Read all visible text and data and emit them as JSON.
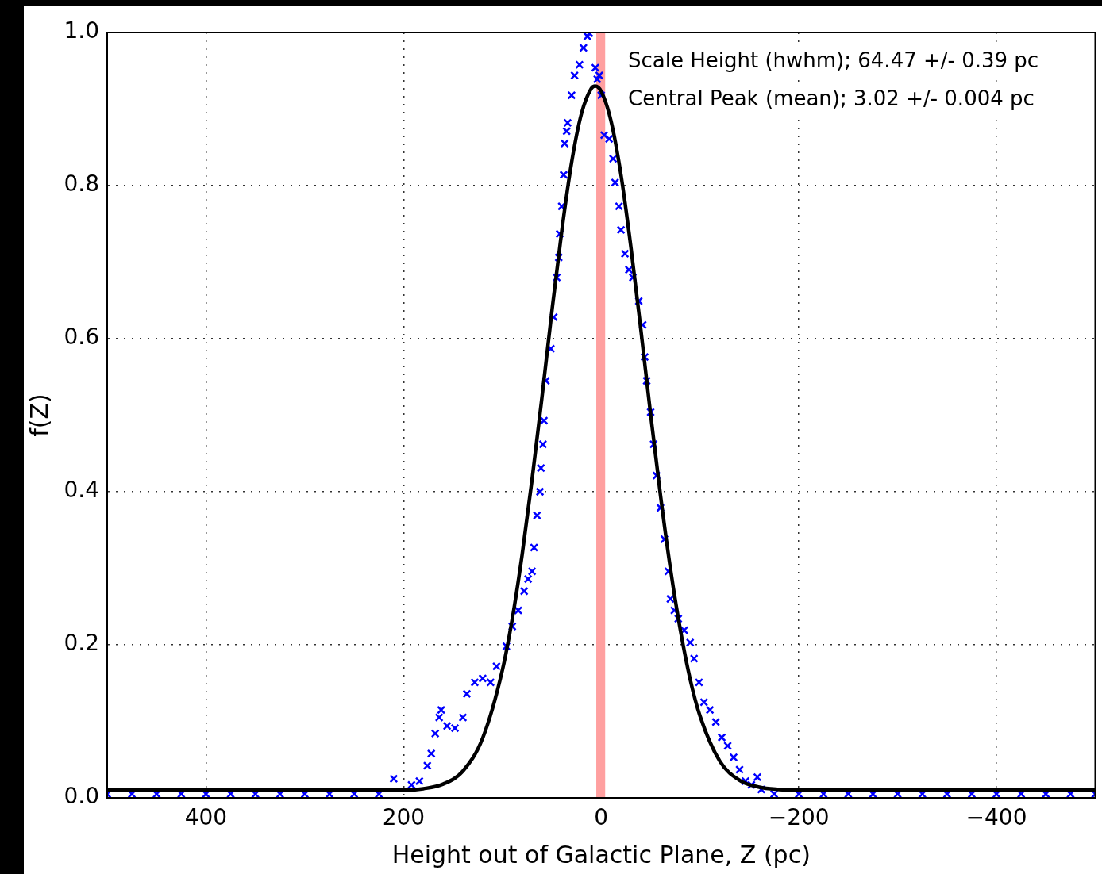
{
  "chart_data": {
    "type": "scatter",
    "xlabel": "Height out of Galactic Plane, Z (pc)",
    "ylabel": "f(Z)",
    "xlim": [
      500,
      -500
    ],
    "ylim": [
      0,
      1
    ],
    "xticks": [
      400,
      200,
      0,
      {
        "value": -200,
        "label": "−200"
      },
      {
        "value": -400,
        "label": "−400"
      }
    ],
    "yticks": [
      {
        "value": 0,
        "label": "0.0"
      },
      {
        "value": 0.2,
        "label": "0.2"
      },
      {
        "value": 0.4,
        "label": "0.4"
      },
      {
        "value": 0.6,
        "label": "0.6"
      },
      {
        "value": 0.8,
        "label": "0.8"
      },
      {
        "value": 1,
        "label": "1.0"
      }
    ],
    "grid": true,
    "legend": false,
    "bands": [
      {
        "axis": "x",
        "from": 5,
        "to": -4,
        "color": "#ffa0a0"
      }
    ],
    "annotations": [
      "Scale Height (hwhm); 64.47 +/- 0.39 pc",
      "Central Peak (mean); 3.02 +/- 0.004 pc"
    ],
    "series": [
      {
        "type": "scatter",
        "color": "#0000ff",
        "marker": "cross",
        "x": [
          500,
          475,
          450,
          425,
          400,
          375,
          350,
          325,
          300,
          275,
          250,
          225,
          210,
          192,
          184,
          176,
          172,
          168,
          164,
          162,
          156,
          148,
          140,
          136,
          128,
          120,
          112,
          106,
          96,
          90,
          84,
          78,
          74,
          70,
          68,
          65,
          62,
          61,
          59,
          58,
          56,
          51,
          48,
          45,
          43,
          42,
          40,
          38,
          37,
          35,
          34,
          30,
          27,
          22,
          18,
          14,
          12,
          6,
          4,
          2,
          0,
          -3,
          -8,
          -12,
          -14,
          -18,
          -20,
          -24,
          -28,
          -32,
          -38,
          -42,
          -44,
          -46,
          -50,
          -53,
          -56,
          -60,
          -64,
          -68,
          -70,
          -74,
          -78,
          -84,
          -90,
          -94,
          -99,
          -104,
          -110,
          -116,
          -122,
          -128,
          -134,
          -140,
          -146,
          -152,
          -158,
          -162,
          -175,
          -200,
          -225,
          -250,
          -275,
          -300,
          -325,
          -350,
          -375,
          -400,
          -425,
          -450,
          -475,
          -500
        ],
        "values": [
          0.005,
          0.005,
          0.005,
          0.005,
          0.005,
          0.005,
          0.005,
          0.005,
          0.005,
          0.005,
          0.005,
          0.005,
          0.025,
          0.017,
          0.022,
          0.042,
          0.058,
          0.084,
          0.105,
          0.115,
          0.094,
          0.091,
          0.105,
          0.136,
          0.151,
          0.156,
          0.151,
          0.172,
          0.198,
          0.224,
          0.245,
          0.27,
          0.286,
          0.296,
          0.327,
          0.369,
          0.4,
          0.431,
          0.462,
          0.493,
          0.545,
          0.587,
          0.628,
          0.68,
          0.706,
          0.737,
          0.773,
          0.814,
          0.855,
          0.871,
          0.882,
          0.918,
          0.944,
          0.958,
          0.98,
          0.995,
          0.999,
          0.954,
          0.939,
          0.944,
          0.918,
          0.866,
          0.861,
          0.835,
          0.804,
          0.773,
          0.742,
          0.711,
          0.69,
          0.68,
          0.649,
          0.618,
          0.576,
          0.545,
          0.504,
          0.462,
          0.421,
          0.379,
          0.338,
          0.296,
          0.26,
          0.245,
          0.234,
          0.219,
          0.203,
          0.182,
          0.151,
          0.125,
          0.115,
          0.099,
          0.079,
          0.068,
          0.053,
          0.037,
          0.022,
          0.017,
          0.027,
          0.011,
          0.005,
          0.005,
          0.005,
          0.005,
          0.005,
          0.005,
          0.005,
          0.005,
          0.005,
          0.005,
          0.005,
          0.005,
          0.005,
          0.005
        ]
      },
      {
        "type": "line",
        "color": "#000000",
        "marker": "none",
        "line_style": "solid",
        "x": [
          500,
          300,
          250,
          200,
          180,
          160,
          140,
          120,
          100,
          90,
          80,
          70,
          60,
          50,
          40,
          30,
          20,
          10,
          6,
          0,
          -10,
          -20,
          -30,
          -40,
          -50,
          -60,
          -70,
          -80,
          -90,
          -100,
          -120,
          -140,
          -160,
          -180,
          -200,
          -300,
          -500
        ],
        "values": [
          0.01,
          0.01,
          0.01,
          0.01,
          0.012,
          0.018,
          0.035,
          0.078,
          0.167,
          0.234,
          0.318,
          0.416,
          0.523,
          0.635,
          0.74,
          0.83,
          0.894,
          0.927,
          0.93,
          0.923,
          0.884,
          0.814,
          0.72,
          0.613,
          0.501,
          0.395,
          0.3,
          0.22,
          0.155,
          0.107,
          0.048,
          0.023,
          0.014,
          0.011,
          0.01,
          0.01,
          0.01
        ]
      }
    ]
  }
}
